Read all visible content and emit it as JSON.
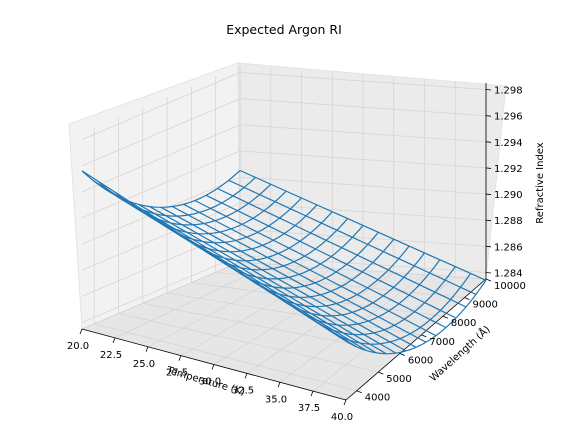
{
  "chart_data": {
    "type": "surface-wireframe",
    "title": "Expected Argon RI",
    "xlabel": "Temperature (K)",
    "ylabel": "Wavelength (Å)",
    "zlabel": "Refractive Index",
    "xlim": [
      20,
      40
    ],
    "ylim": [
      3500,
      10000
    ],
    "zlim": [
      1.2835,
      1.2985
    ],
    "x_ticks": [
      "20.0",
      "22.5",
      "25.0",
      "27.5",
      "30.0",
      "32.5",
      "35.0",
      "37.5",
      "40.0"
    ],
    "y_ticks": [
      "4000",
      "5000",
      "6000",
      "7000",
      "8000",
      "9000",
      "10000"
    ],
    "z_ticks": [
      "1.284",
      "1.286",
      "1.288",
      "1.290",
      "1.292",
      "1.294",
      "1.296",
      "1.298"
    ],
    "grid": true,
    "series": [
      {
        "color": "#1f77b4",
        "temperature_range": [
          20,
          40
        ],
        "wavelength_range": [
          3500,
          10000
        ],
        "corner_values": {
          "T20_W3500": 1.2956,
          "T20_W10000": 1.2905,
          "T40_W3500": 1.288,
          "T40_W10000": 1.2834
        }
      }
    ]
  }
}
